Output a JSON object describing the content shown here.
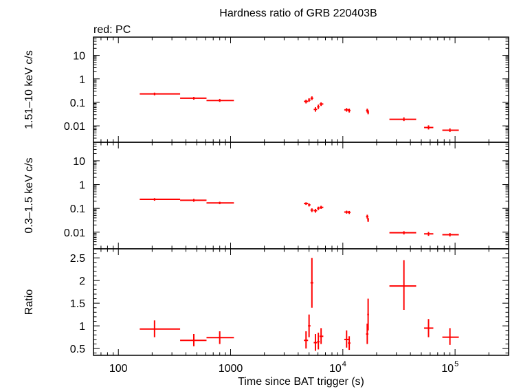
{
  "chart_data": {
    "type": "scatter",
    "title": "Hardness ratio of GRB 220403B",
    "subtitle": "red: PC",
    "xlabel": "Time since BAT trigger (s)",
    "x_scale": "log",
    "xlim": [
      60,
      300000
    ],
    "x_ticks": [
      {
        "v": 100,
        "label": "100"
      },
      {
        "v": 1000,
        "label": "1000"
      },
      {
        "v": 10000,
        "base": "10",
        "exp": "4"
      },
      {
        "v": 100000,
        "base": "10",
        "exp": "5"
      }
    ],
    "series_color": "#ff0000",
    "panels": [
      {
        "name": "hard",
        "ylabel": "1.51–10 keV c/s",
        "y_scale": "log",
        "ylim": [
          0.002,
          60
        ],
        "y_ticks": [
          {
            "v": 10,
            "label": "10"
          },
          {
            "v": 1,
            "label": "1"
          },
          {
            "v": 0.1,
            "label": "0.1"
          },
          {
            "v": 0.01,
            "label": "0.01"
          }
        ],
        "points": [
          {
            "x": 210,
            "xlo": 155,
            "xhi": 355,
            "y": 0.23,
            "ylo": 0.2,
            "yhi": 0.26
          },
          {
            "x": 470,
            "xlo": 355,
            "xhi": 610,
            "y": 0.15,
            "ylo": 0.13,
            "yhi": 0.17
          },
          {
            "x": 800,
            "xlo": 610,
            "xhi": 1070,
            "y": 0.12,
            "ylo": 0.105,
            "yhi": 0.14
          },
          {
            "x": 4700,
            "xlo": 4500,
            "xhi": 4900,
            "y": 0.11,
            "ylo": 0.09,
            "yhi": 0.13
          },
          {
            "x": 5000,
            "xlo": 4900,
            "xhi": 5150,
            "y": 0.125,
            "ylo": 0.105,
            "yhi": 0.15
          },
          {
            "x": 5300,
            "xlo": 5150,
            "xhi": 5450,
            "y": 0.15,
            "ylo": 0.125,
            "yhi": 0.18
          },
          {
            "x": 5700,
            "xlo": 5500,
            "xhi": 5900,
            "y": 0.05,
            "ylo": 0.04,
            "yhi": 0.062
          },
          {
            "x": 6050,
            "xlo": 5900,
            "xhi": 6200,
            "y": 0.065,
            "ylo": 0.052,
            "yhi": 0.08
          },
          {
            "x": 6400,
            "xlo": 6200,
            "xhi": 6700,
            "y": 0.085,
            "ylo": 0.07,
            "yhi": 0.1
          },
          {
            "x": 10800,
            "xlo": 10300,
            "xhi": 11300,
            "y": 0.048,
            "ylo": 0.04,
            "yhi": 0.057
          },
          {
            "x": 11400,
            "xlo": 11100,
            "xhi": 11700,
            "y": 0.045,
            "ylo": 0.037,
            "yhi": 0.054
          },
          {
            "x": 16500,
            "xlo": 16100,
            "xhi": 16900,
            "y": 0.045,
            "ylo": 0.037,
            "yhi": 0.054
          },
          {
            "x": 16800,
            "xlo": 16500,
            "xhi": 17100,
            "y": 0.038,
            "ylo": 0.031,
            "yhi": 0.046
          },
          {
            "x": 35000,
            "xlo": 26000,
            "xhi": 45000,
            "y": 0.019,
            "ylo": 0.016,
            "yhi": 0.023
          },
          {
            "x": 58000,
            "xlo": 53000,
            "xhi": 64000,
            "y": 0.0085,
            "ylo": 0.007,
            "yhi": 0.0105
          },
          {
            "x": 90000,
            "xlo": 77000,
            "xhi": 108000,
            "y": 0.0065,
            "ylo": 0.0055,
            "yhi": 0.0078
          }
        ]
      },
      {
        "name": "soft",
        "ylabel": "0.3–1.5 keV c/s",
        "y_scale": "log",
        "ylim": [
          0.002,
          60
        ],
        "y_ticks": [
          {
            "v": 10,
            "label": "10"
          },
          {
            "v": 1,
            "label": "1"
          },
          {
            "v": 0.1,
            "label": "0.1"
          },
          {
            "v": 0.01,
            "label": "0.01"
          }
        ],
        "points": [
          {
            "x": 210,
            "xlo": 155,
            "xhi": 355,
            "y": 0.24,
            "ylo": 0.21,
            "yhi": 0.27
          },
          {
            "x": 470,
            "xlo": 355,
            "xhi": 610,
            "y": 0.22,
            "ylo": 0.19,
            "yhi": 0.25
          },
          {
            "x": 800,
            "xlo": 610,
            "xhi": 1070,
            "y": 0.17,
            "ylo": 0.15,
            "yhi": 0.19
          },
          {
            "x": 4700,
            "xlo": 4500,
            "xhi": 4900,
            "y": 0.16,
            "ylo": 0.14,
            "yhi": 0.18
          },
          {
            "x": 5000,
            "xlo": 4900,
            "xhi": 5150,
            "y": 0.14,
            "ylo": 0.12,
            "yhi": 0.16
          },
          {
            "x": 5300,
            "xlo": 5150,
            "xhi": 5450,
            "y": 0.085,
            "ylo": 0.07,
            "yhi": 0.1
          },
          {
            "x": 5700,
            "xlo": 5500,
            "xhi": 5900,
            "y": 0.08,
            "ylo": 0.066,
            "yhi": 0.095
          },
          {
            "x": 6050,
            "xlo": 5900,
            "xhi": 6200,
            "y": 0.1,
            "ylo": 0.085,
            "yhi": 0.118
          },
          {
            "x": 6400,
            "xlo": 6200,
            "xhi": 6700,
            "y": 0.11,
            "ylo": 0.095,
            "yhi": 0.128
          },
          {
            "x": 10800,
            "xlo": 10300,
            "xhi": 11300,
            "y": 0.07,
            "ylo": 0.06,
            "yhi": 0.08
          },
          {
            "x": 11400,
            "xlo": 11100,
            "xhi": 11700,
            "y": 0.068,
            "ylo": 0.058,
            "yhi": 0.078
          },
          {
            "x": 16500,
            "xlo": 16100,
            "xhi": 16900,
            "y": 0.045,
            "ylo": 0.037,
            "yhi": 0.054
          },
          {
            "x": 16800,
            "xlo": 16500,
            "xhi": 17100,
            "y": 0.033,
            "ylo": 0.027,
            "yhi": 0.04
          },
          {
            "x": 35000,
            "xlo": 26000,
            "xhi": 45000,
            "y": 0.0095,
            "ylo": 0.008,
            "yhi": 0.011
          },
          {
            "x": 58000,
            "xlo": 53000,
            "xhi": 64000,
            "y": 0.0085,
            "ylo": 0.007,
            "yhi": 0.0102
          },
          {
            "x": 90000,
            "xlo": 77000,
            "xhi": 108000,
            "y": 0.0078,
            "ylo": 0.0066,
            "yhi": 0.0092
          }
        ]
      },
      {
        "name": "ratio",
        "ylabel": "Ratio",
        "y_scale": "linear",
        "ylim": [
          0.35,
          2.7
        ],
        "y_ticks": [
          {
            "v": 0.5,
            "label": "0.5"
          },
          {
            "v": 1,
            "label": "1"
          },
          {
            "v": 1.5,
            "label": "1.5"
          },
          {
            "v": 2,
            "label": "2"
          },
          {
            "v": 2.5,
            "label": "2.5"
          }
        ],
        "y_minor_step": 0.1,
        "points": [
          {
            "x": 210,
            "xlo": 155,
            "xhi": 355,
            "y": 0.93,
            "ylo": 0.75,
            "yhi": 1.12
          },
          {
            "x": 470,
            "xlo": 355,
            "xhi": 610,
            "y": 0.68,
            "ylo": 0.55,
            "yhi": 0.82
          },
          {
            "x": 800,
            "xlo": 610,
            "xhi": 1070,
            "y": 0.74,
            "ylo": 0.6,
            "yhi": 0.88
          },
          {
            "x": 4700,
            "xlo": 4500,
            "xhi": 4900,
            "y": 0.68,
            "ylo": 0.5,
            "yhi": 0.88
          },
          {
            "x": 5000,
            "xlo": 4900,
            "xhi": 5150,
            "y": 1.0,
            "ylo": 0.75,
            "yhi": 1.25
          },
          {
            "x": 5300,
            "xlo": 5150,
            "xhi": 5450,
            "y": 1.95,
            "ylo": 1.4,
            "yhi": 2.5
          },
          {
            "x": 5700,
            "xlo": 5500,
            "xhi": 5900,
            "y": 0.63,
            "ylo": 0.45,
            "yhi": 0.82
          },
          {
            "x": 6050,
            "xlo": 5900,
            "xhi": 6200,
            "y": 0.65,
            "ylo": 0.48,
            "yhi": 0.85
          },
          {
            "x": 6400,
            "xlo": 6200,
            "xhi": 6700,
            "y": 0.77,
            "ylo": 0.6,
            "yhi": 0.95
          },
          {
            "x": 10800,
            "xlo": 10300,
            "xhi": 11300,
            "y": 0.7,
            "ylo": 0.52,
            "yhi": 0.9
          },
          {
            "x": 11400,
            "xlo": 11100,
            "xhi": 11700,
            "y": 0.62,
            "ylo": 0.47,
            "yhi": 0.77
          },
          {
            "x": 16500,
            "xlo": 16100,
            "xhi": 16900,
            "y": 0.82,
            "ylo": 0.6,
            "yhi": 1.05
          },
          {
            "x": 16800,
            "xlo": 16500,
            "xhi": 17100,
            "y": 1.25,
            "ylo": 0.9,
            "yhi": 1.6
          },
          {
            "x": 35000,
            "xlo": 26000,
            "xhi": 45000,
            "y": 1.88,
            "ylo": 1.35,
            "yhi": 2.45
          },
          {
            "x": 58000,
            "xlo": 53000,
            "xhi": 64000,
            "y": 0.95,
            "ylo": 0.75,
            "yhi": 1.15
          },
          {
            "x": 90000,
            "xlo": 77000,
            "xhi": 108000,
            "y": 0.75,
            "ylo": 0.58,
            "yhi": 0.95
          }
        ]
      }
    ]
  }
}
